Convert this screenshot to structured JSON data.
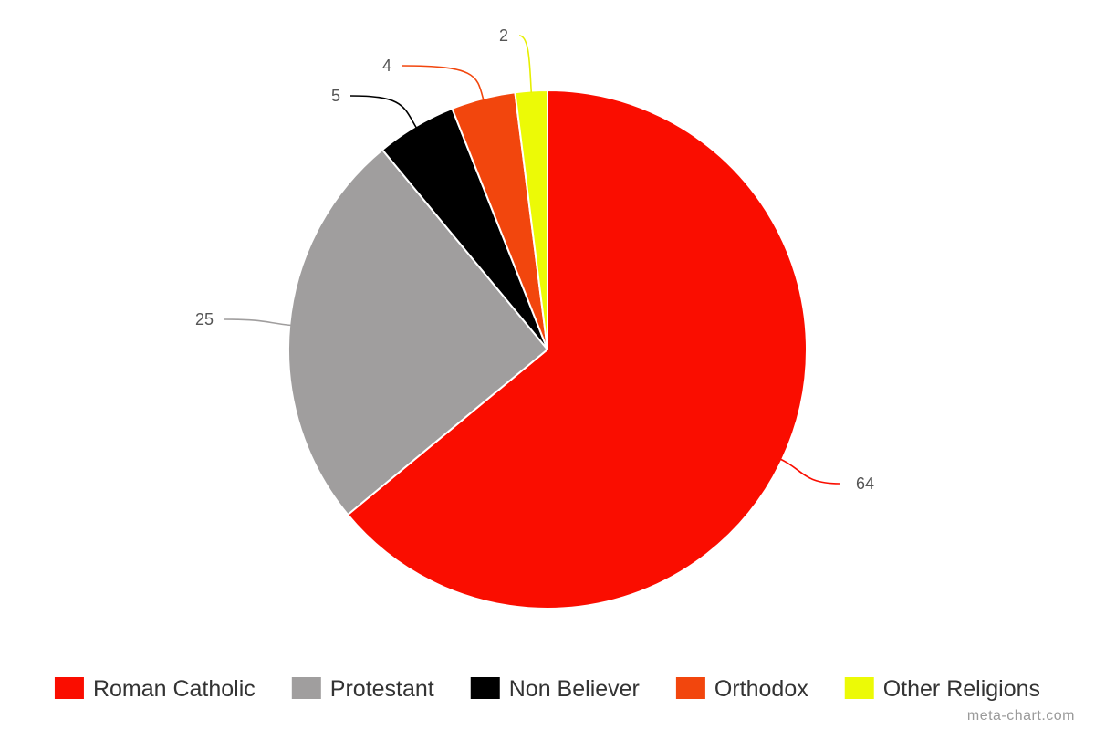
{
  "chart_data": {
    "type": "pie",
    "title": "",
    "slices": [
      {
        "label": "Roman Catholic",
        "value": 64,
        "color": "#fa0d00"
      },
      {
        "label": "Protestant",
        "value": 25,
        "color": "#a09e9e"
      },
      {
        "label": "Non Believer",
        "value": 5,
        "color": "#000000"
      },
      {
        "label": "Orthodox",
        "value": 4,
        "color": "#f2460d"
      },
      {
        "label": "Other Religions",
        "value": 2,
        "color": "#ecfa06"
      }
    ],
    "start_angle": "12 o'clock, clockwise",
    "legend_position": "bottom"
  },
  "credit": "meta-chart.com"
}
